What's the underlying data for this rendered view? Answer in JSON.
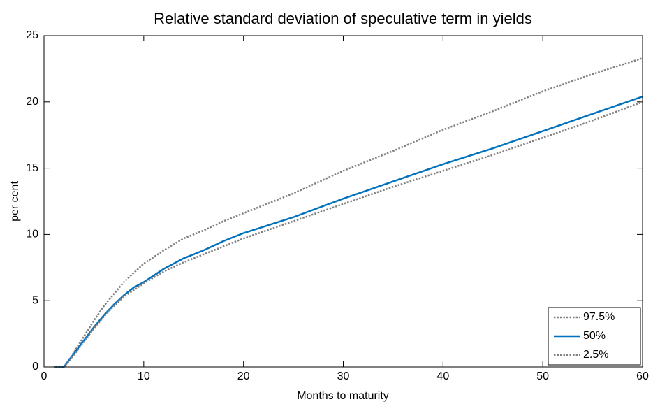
{
  "chart_data": {
    "type": "line",
    "title": "Relative standard deviation of speculative term in yields",
    "xlabel": "Months to maturity",
    "ylabel": "per cent",
    "x": [
      1,
      2,
      3,
      4,
      5,
      6,
      7,
      8,
      9,
      10,
      12,
      14,
      16,
      18,
      20,
      25,
      30,
      35,
      40,
      45,
      50,
      55,
      60
    ],
    "series": [
      {
        "name": "97.5%",
        "color": "#808080",
        "linestyle": "dotted",
        "values": [
          0,
          0,
          1.1,
          2.3,
          3.5,
          4.6,
          5.5,
          6.4,
          7.1,
          7.8,
          8.8,
          9.7,
          10.3,
          11.0,
          11.6,
          13.1,
          14.8,
          16.3,
          17.9,
          19.3,
          20.8,
          22.1,
          23.3
        ]
      },
      {
        "name": "50%",
        "color": "#0072bd",
        "linestyle": "solid",
        "values": [
          0,
          0,
          1.0,
          2.0,
          3.0,
          3.9,
          4.7,
          5.4,
          6.0,
          6.4,
          7.4,
          8.2,
          8.8,
          9.5,
          10.1,
          11.3,
          12.7,
          14.0,
          15.3,
          16.5,
          17.8,
          19.1,
          20.4
        ]
      },
      {
        "name": "2.5%",
        "color": "#808080",
        "linestyle": "dotted",
        "values": [
          0,
          0,
          0.9,
          1.9,
          2.9,
          3.8,
          4.6,
          5.3,
          5.8,
          6.3,
          7.2,
          7.9,
          8.5,
          9.1,
          9.7,
          11.0,
          12.3,
          13.6,
          14.8,
          16.0,
          17.3,
          18.6,
          20.0
        ]
      }
    ],
    "xlim": [
      0,
      60
    ],
    "xticks": [
      0,
      10,
      20,
      30,
      40,
      50,
      60
    ],
    "ylim": [
      0,
      25
    ],
    "yticks": [
      0,
      5,
      10,
      15,
      20,
      25
    ],
    "grid": false,
    "legend": "lower right"
  }
}
